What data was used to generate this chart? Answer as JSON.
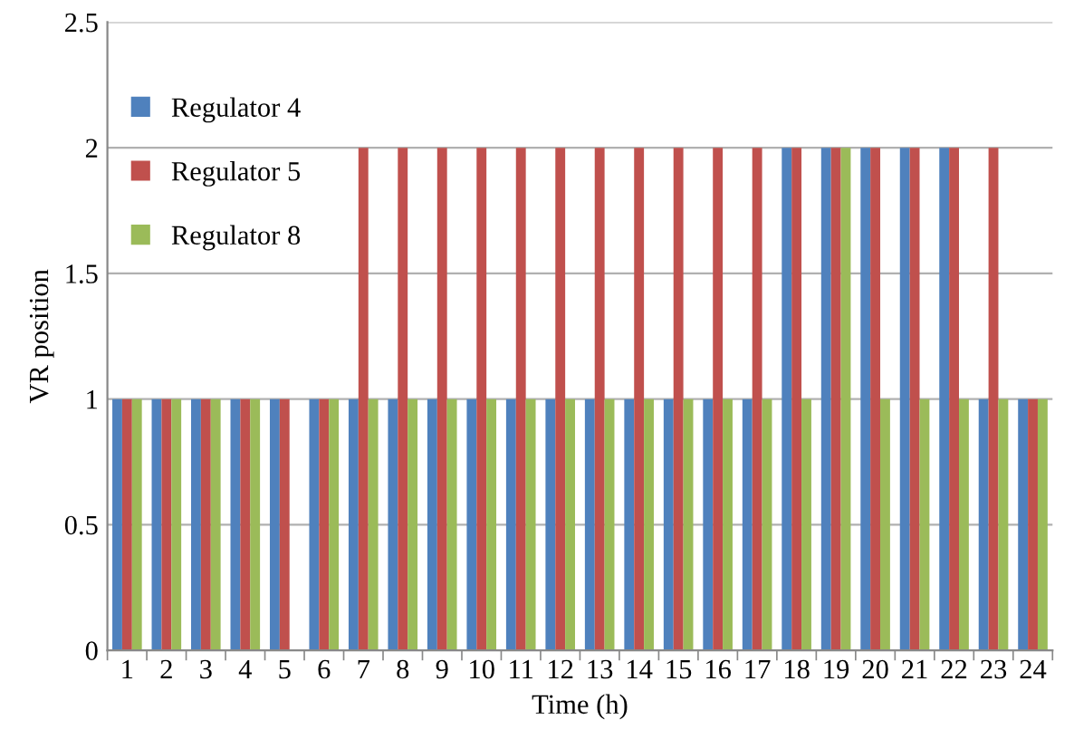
{
  "chart_data": {
    "type": "bar",
    "xlabel": "Time (h)",
    "ylabel": "VR position",
    "categories": [
      "1",
      "2",
      "3",
      "4",
      "5",
      "6",
      "7",
      "8",
      "9",
      "10",
      "11",
      "12",
      "13",
      "14",
      "15",
      "16",
      "17",
      "18",
      "19",
      "20",
      "21",
      "22",
      "23",
      "24"
    ],
    "series": [
      {
        "name": "Regulator 4",
        "color": "#4f81bd",
        "values": [
          1,
          1,
          1,
          1,
          1,
          1,
          1,
          1,
          1,
          1,
          1,
          1,
          1,
          1,
          1,
          1,
          1,
          2,
          2,
          2,
          2,
          2,
          1,
          1
        ]
      },
      {
        "name": "Regulator 5",
        "color": "#c0504d",
        "values": [
          1,
          1,
          1,
          1,
          1,
          1,
          2,
          2,
          2,
          2,
          2,
          2,
          2,
          2,
          2,
          2,
          2,
          2,
          2,
          2,
          2,
          2,
          2,
          1
        ]
      },
      {
        "name": "Regulator 8",
        "color": "#9bbb59",
        "values": [
          1,
          1,
          1,
          1,
          0,
          1,
          1,
          1,
          1,
          1,
          1,
          1,
          1,
          1,
          1,
          1,
          1,
          1,
          2,
          1,
          1,
          1,
          1,
          1
        ]
      }
    ],
    "ylim": [
      0,
      2.5
    ],
    "yticks": [
      0,
      0.5,
      1,
      1.5,
      2,
      2.5
    ],
    "grid": "y",
    "legend": "top left"
  }
}
